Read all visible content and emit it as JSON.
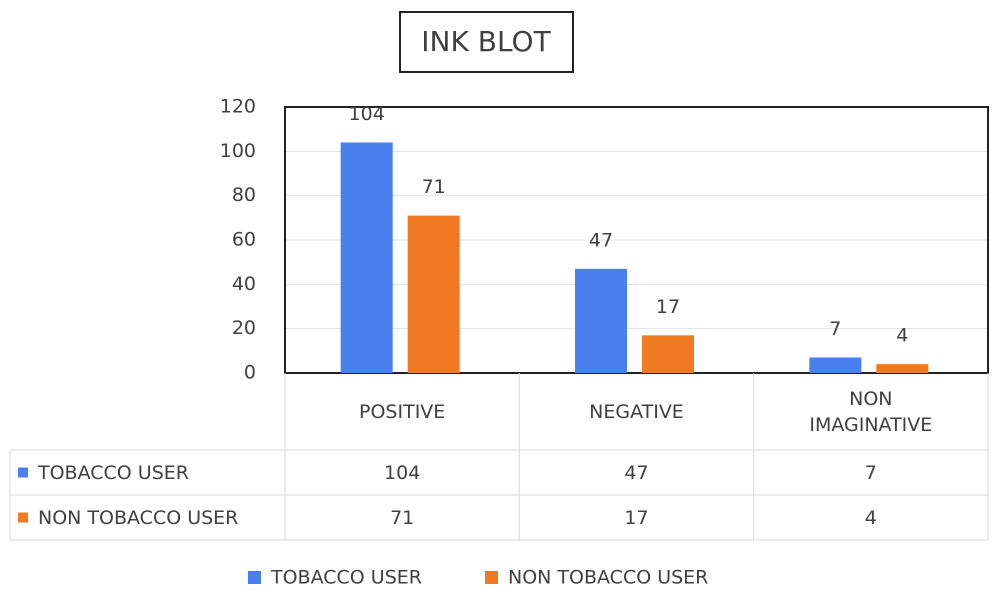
{
  "chart_data": {
    "type": "bar",
    "title": "INK BLOT",
    "categories": [
      "POSITIVE",
      "NEGATIVE",
      "NON IMAGINATIVE"
    ],
    "series": [
      {
        "name": "TOBACCO USER",
        "color": "#4a7ff0",
        "values": [
          104,
          47,
          7
        ]
      },
      {
        "name": "NON TOBACCO USER",
        "color": "#f07a22",
        "values": [
          71,
          17,
          4
        ]
      }
    ],
    "ylim": [
      0,
      120
    ],
    "yticks": [
      0,
      20,
      40,
      60,
      80,
      100,
      120
    ],
    "grid": true,
    "legend": "bottom",
    "data_table": true
  }
}
